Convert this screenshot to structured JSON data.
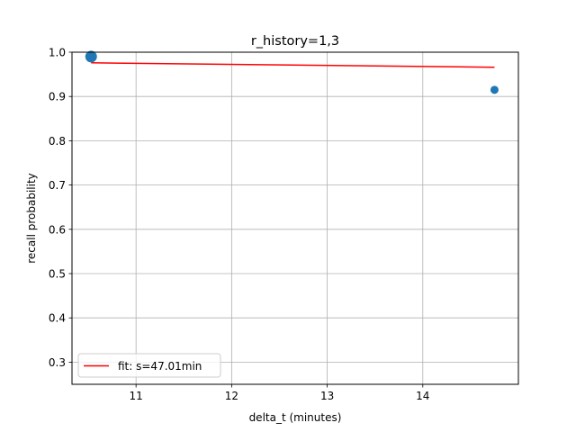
{
  "chart_data": {
    "type": "scatter",
    "title": "r_history=1,3",
    "xlabel": "delta_t (minutes)",
    "ylabel": "recall probability",
    "xlim": [
      10.33,
      15.0
    ],
    "ylim": [
      0.25,
      1.0
    ],
    "xticks": [
      11,
      12,
      13,
      14
    ],
    "yticks": [
      0.3,
      0.4,
      0.5,
      0.6,
      0.7,
      0.8,
      0.9,
      1.0
    ],
    "grid": true,
    "legend_placement": "lower-left",
    "points": [
      {
        "x": 10.53,
        "y": 0.99,
        "size": "large"
      },
      {
        "x": 14.75,
        "y": 0.915,
        "size": "small"
      }
    ],
    "series": [
      {
        "name": "fit: s=47.01min",
        "type": "line",
        "color": "#ff0000",
        "x": [
          10.53,
          14.75
        ],
        "y": [
          0.976,
          0.966
        ]
      }
    ],
    "point_color": "#1f77b4"
  }
}
